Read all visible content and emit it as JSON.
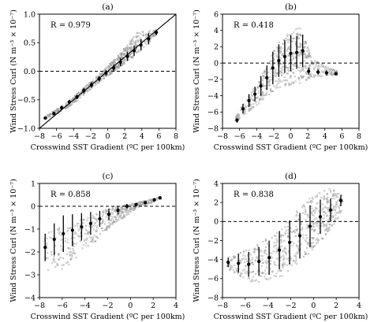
{
  "chart_data": [
    {
      "type": "scatter",
      "title": "(a)",
      "annotation": "R = 0.979",
      "xlabel": "Crosswind SST Gradient (ºC per 100km)",
      "ylabel": "Wind Stress Curl (N m⁻³ × 10⁻⁷)",
      "xlim": [
        -8,
        8
      ],
      "ylim": [
        -1.0,
        1.0
      ],
      "xticks": [
        -8,
        -6,
        -4,
        -2,
        0,
        2,
        4,
        6,
        8
      ],
      "xtick_labels": [
        "−8",
        "−6",
        "−4",
        "−2",
        "0",
        "2",
        "4",
        "6",
        "8"
      ],
      "yticks": [
        -1.0,
        -0.5,
        0.0,
        0.5,
        1.0
      ],
      "ytick_labels": [
        "−1.0",
        "−0.5",
        "0.0",
        "0.5",
        "1.0"
      ],
      "reference_line": {
        "style": "solid",
        "slope": 0.125,
        "intercept": 0
      },
      "zero_line": {
        "style": "dashed",
        "y": 0
      },
      "binned_means": [
        {
          "x": -7.3,
          "y": -0.82,
          "err": 0.02
        },
        {
          "x": -6.3,
          "y": -0.74,
          "err": 0.03
        },
        {
          "x": -5.4,
          "y": -0.64,
          "err": 0.04
        },
        {
          "x": -4.5,
          "y": -0.54,
          "err": 0.04
        },
        {
          "x": -3.6,
          "y": -0.45,
          "err": 0.04
        },
        {
          "x": -2.8,
          "y": -0.34,
          "err": 0.05
        },
        {
          "x": -1.9,
          "y": -0.24,
          "err": 0.05
        },
        {
          "x": -1.0,
          "y": -0.13,
          "err": 0.05
        },
        {
          "x": -0.2,
          "y": -0.03,
          "err": 0.05
        },
        {
          "x": 0.7,
          "y": 0.06,
          "err": 0.06
        },
        {
          "x": 1.5,
          "y": 0.16,
          "err": 0.07
        },
        {
          "x": 2.3,
          "y": 0.26,
          "err": 0.08
        },
        {
          "x": 3.1,
          "y": 0.36,
          "err": 0.09
        },
        {
          "x": 3.9,
          "y": 0.46,
          "err": 0.1
        },
        {
          "x": 4.8,
          "y": 0.57,
          "err": 0.1
        },
        {
          "x": 5.7,
          "y": 0.68,
          "err": 0.05
        }
      ],
      "scatter_cloud": [
        {
          "x0": -7.5,
          "x1": -5.0,
          "lo0": -0.85,
          "hi0": -0.8,
          "lo1": -0.68,
          "hi1": -0.58,
          "n": 70
        },
        {
          "x0": -5.0,
          "x1": -1.0,
          "lo0": -0.68,
          "hi0": -0.58,
          "lo1": -0.2,
          "hi1": -0.05,
          "n": 160
        },
        {
          "x0": -1.0,
          "x1": 1.5,
          "lo0": -0.2,
          "hi0": -0.05,
          "lo1": 0.08,
          "hi1": 0.32,
          "n": 160
        },
        {
          "x0": 1.5,
          "x1": 3.5,
          "lo0": 0.08,
          "hi0": 0.32,
          "lo1": 0.3,
          "hi1": 0.7,
          "n": 150
        },
        {
          "x0": 3.5,
          "x1": 5.8,
          "lo0": 0.3,
          "hi0": 0.7,
          "lo1": 0.66,
          "hi1": 0.72,
          "n": 80
        }
      ]
    },
    {
      "type": "scatter",
      "title": "(b)",
      "annotation": "R = 0.418",
      "xlabel": "Crosswind SST Gradient (ºC per 100km)",
      "ylabel": "Wind Stress Curl (N m⁻³ × 10⁻⁷)",
      "xlim": [
        -8,
        8
      ],
      "ylim": [
        -8,
        6
      ],
      "xticks": [
        -8,
        -6,
        -4,
        -2,
        0,
        2,
        4,
        6,
        8
      ],
      "xtick_labels": [
        "−8",
        "−6",
        "−4",
        "−2",
        "0",
        "2",
        "4",
        "6",
        "8"
      ],
      "yticks": [
        -8,
        -6,
        -4,
        -2,
        0,
        2,
        4,
        6
      ],
      "ytick_labels": [
        "−8",
        "−6",
        "−4",
        "−2",
        "0",
        "2",
        "4",
        "6"
      ],
      "zero_line": {
        "style": "dashed",
        "y": 0
      },
      "binned_means": [
        {
          "x": -6.3,
          "y": -7.0,
          "err": 0.3
        },
        {
          "x": -5.6,
          "y": -5.6,
          "err": 0.6
        },
        {
          "x": -4.9,
          "y": -4.6,
          "err": 0.8
        },
        {
          "x": -4.2,
          "y": -3.8,
          "err": 0.9
        },
        {
          "x": -3.5,
          "y": -2.8,
          "err": 1.2
        },
        {
          "x": -2.8,
          "y": -1.8,
          "err": 1.5
        },
        {
          "x": -2.1,
          "y": -0.6,
          "err": 2.0
        },
        {
          "x": -1.4,
          "y": 0.3,
          "err": 2.0
        },
        {
          "x": -0.7,
          "y": 0.8,
          "err": 2.0
        },
        {
          "x": 0.0,
          "y": 1.2,
          "err": 2.2
        },
        {
          "x": 0.7,
          "y": 1.3,
          "err": 2.0
        },
        {
          "x": 1.4,
          "y": 1.5,
          "err": 2.0
        },
        {
          "x": 2.1,
          "y": -1.0,
          "err": 0.4
        },
        {
          "x": 3.2,
          "y": -1.1,
          "err": 0.3
        },
        {
          "x": 4.2,
          "y": -1.2,
          "err": 0.3
        },
        {
          "x": 5.3,
          "y": -1.3,
          "err": 0.2
        }
      ],
      "scatter_cloud": [
        {
          "x0": -6.5,
          "x1": -4.0,
          "lo0": -7.2,
          "hi0": -6.6,
          "lo1": -5.2,
          "hi1": -2.5,
          "n": 80
        },
        {
          "x0": -4.0,
          "x1": -1.5,
          "lo0": -5.2,
          "hi0": -2.5,
          "lo1": -3.0,
          "hi1": 2.5,
          "n": 120
        },
        {
          "x0": -1.5,
          "x1": 1.0,
          "lo0": -3.0,
          "hi0": 2.5,
          "lo1": -2.5,
          "hi1": 4.8,
          "n": 170
        },
        {
          "x0": 1.0,
          "x1": 2.5,
          "lo0": -2.5,
          "hi0": 4.8,
          "lo1": -1.8,
          "hi1": 0.5,
          "n": 110
        },
        {
          "x0": 2.5,
          "x1": 5.5,
          "lo0": -1.8,
          "hi0": 0.5,
          "lo1": -1.4,
          "hi1": -1.0,
          "n": 90
        }
      ]
    },
    {
      "type": "scatter",
      "title": "(c)",
      "annotation": "R = 0.858",
      "xlabel": "Crosswind SST Gradient (ºC per 100km)",
      "ylabel": "Wind Stress Curl (N m⁻³ × 10⁻⁷)",
      "xlim": [
        -8,
        4
      ],
      "ylim": [
        -4,
        1
      ],
      "xticks": [
        -8,
        -6,
        -4,
        -2,
        0,
        2,
        4
      ],
      "xtick_labels": [
        "−8",
        "−6",
        "−4",
        "−2",
        "0",
        "2",
        "4"
      ],
      "yticks": [
        -4,
        -3,
        -2,
        -1,
        0,
        1
      ],
      "ytick_labels": [
        "−4",
        "−3",
        "−2",
        "−1",
        "0",
        "1"
      ],
      "zero_line": {
        "style": "dashed",
        "y": 0
      },
      "binned_means": [
        {
          "x": -7.5,
          "y": -1.8,
          "err": 0.6
        },
        {
          "x": -6.7,
          "y": -1.45,
          "err": 0.7
        },
        {
          "x": -5.9,
          "y": -1.2,
          "err": 0.8
        },
        {
          "x": -5.1,
          "y": -1.05,
          "err": 0.7
        },
        {
          "x": -4.3,
          "y": -0.9,
          "err": 0.6
        },
        {
          "x": -3.5,
          "y": -0.75,
          "err": 0.5
        },
        {
          "x": -2.7,
          "y": -0.55,
          "err": 0.35
        },
        {
          "x": -1.9,
          "y": -0.35,
          "err": 0.25
        },
        {
          "x": -1.1,
          "y": -0.18,
          "err": 0.18
        },
        {
          "x": -0.3,
          "y": 0.0,
          "err": 0.1
        },
        {
          "x": 0.5,
          "y": 0.08,
          "err": 0.06
        },
        {
          "x": 1.3,
          "y": 0.16,
          "err": 0.05
        },
        {
          "x": 2.1,
          "y": 0.28,
          "err": 0.05
        },
        {
          "x": 2.6,
          "y": 0.37,
          "err": 0.04
        }
      ],
      "scatter_cloud": [
        {
          "x0": -7.6,
          "x1": -5.0,
          "lo0": -3.0,
          "hi0": -1.2,
          "lo1": -2.6,
          "hi1": -0.7,
          "n": 90
        },
        {
          "x0": -5.0,
          "x1": -2.0,
          "lo0": -2.6,
          "hi0": -0.7,
          "lo1": -1.0,
          "hi1": -0.1,
          "n": 130
        },
        {
          "x0": -2.0,
          "x1": 0.5,
          "lo0": -1.0,
          "hi0": -0.1,
          "lo1": -0.1,
          "hi1": 0.15,
          "n": 150
        },
        {
          "x0": 0.5,
          "x1": 2.7,
          "lo0": -0.1,
          "hi0": 0.15,
          "lo1": 0.3,
          "hi1": 0.42,
          "n": 90
        }
      ]
    },
    {
      "type": "scatter",
      "title": "(d)",
      "annotation": "R = 0.838",
      "xlabel": "Crosswind SST Gradient (ºC per 100km)",
      "ylabel": "Wind Stress Curl (N m⁻³ × 10⁻⁷)",
      "xlim": [
        -8,
        4
      ],
      "ylim": [
        -8,
        4
      ],
      "xticks": [
        -8,
        -6,
        -4,
        -2,
        0,
        2,
        4
      ],
      "xtick_labels": [
        "−8",
        "−6",
        "−4",
        "−2",
        "0",
        "2",
        "4"
      ],
      "yticks": [
        -8,
        -6,
        -4,
        -2,
        0,
        2,
        4
      ],
      "ytick_labels": [
        "−8",
        "−6",
        "−4",
        "−2",
        "0",
        "2",
        "4"
      ],
      "zero_line": {
        "style": "dashed",
        "y": 0
      },
      "binned_means": [
        {
          "x": -7.5,
          "y": -4.3,
          "err": 0.5
        },
        {
          "x": -6.6,
          "y": -4.4,
          "err": 1.0
        },
        {
          "x": -5.7,
          "y": -4.5,
          "err": 1.3
        },
        {
          "x": -4.8,
          "y": -4.2,
          "err": 1.5
        },
        {
          "x": -3.9,
          "y": -3.8,
          "err": 1.8
        },
        {
          "x": -3.0,
          "y": -3.0,
          "err": 2.0
        },
        {
          "x": -2.1,
          "y": -2.2,
          "err": 2.3
        },
        {
          "x": -1.2,
          "y": -1.5,
          "err": 2.4
        },
        {
          "x": -0.3,
          "y": -0.5,
          "err": 2.2
        },
        {
          "x": 0.6,
          "y": 0.5,
          "err": 1.8
        },
        {
          "x": 1.5,
          "y": 1.2,
          "err": 1.2
        },
        {
          "x": 2.4,
          "y": 2.2,
          "err": 0.6
        }
      ],
      "scatter_cloud": [
        {
          "x0": -7.6,
          "x1": -5.5,
          "lo0": -5.0,
          "hi0": -3.8,
          "lo1": -6.5,
          "hi1": -2.8,
          "n": 80
        },
        {
          "x0": -5.5,
          "x1": -3.0,
          "lo0": -6.5,
          "hi0": -2.8,
          "lo1": -6.0,
          "hi1": -1.0,
          "n": 120
        },
        {
          "x0": -3.0,
          "x1": -0.5,
          "lo0": -6.0,
          "hi0": -1.0,
          "lo1": -3.5,
          "hi1": 2.5,
          "n": 160
        },
        {
          "x0": -0.5,
          "x1": 1.5,
          "lo0": -3.5,
          "hi0": 2.5,
          "lo1": -1.0,
          "hi1": 3.5,
          "n": 170
        },
        {
          "x0": 1.5,
          "x1": 2.6,
          "lo0": -1.0,
          "hi0": 3.5,
          "lo1": 1.2,
          "hi1": 2.8,
          "n": 70
        }
      ]
    }
  ]
}
